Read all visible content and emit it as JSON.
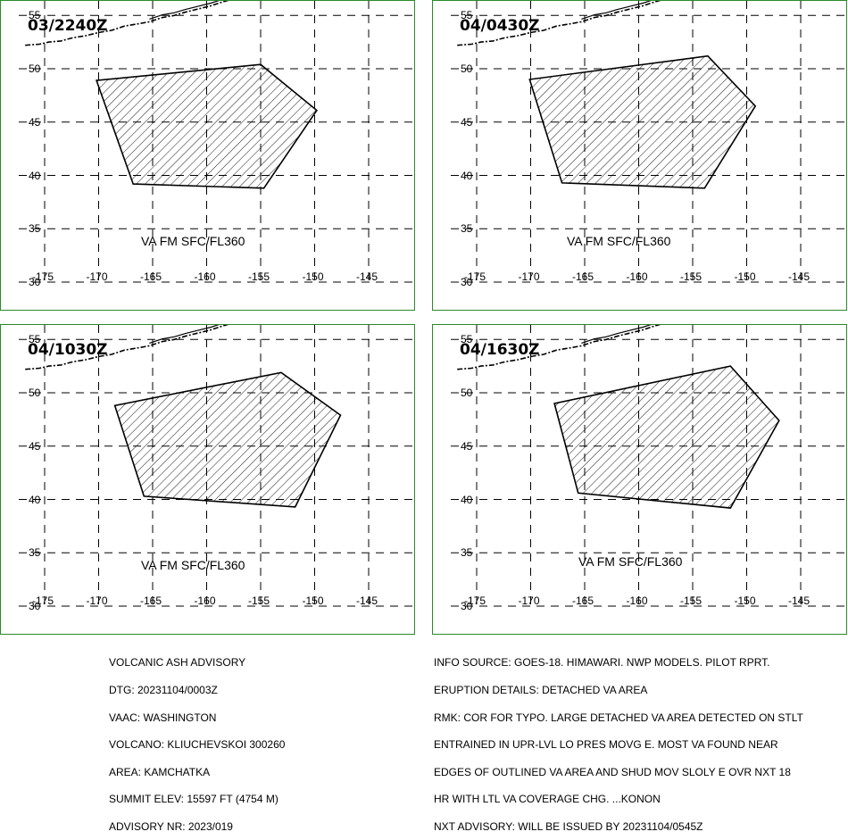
{
  "map": {
    "lon_ticks": [
      "-175",
      "-170",
      "-165",
      "-160",
      "-155",
      "-150",
      "-145"
    ],
    "lat_ticks": [
      "55",
      "50",
      "45",
      "40",
      "35",
      "30"
    ],
    "bounds": {
      "lon_min": -177,
      "lon_max": -140,
      "lat_min": 30,
      "lat_max": 56
    }
  },
  "panels": [
    {
      "time": "03/2240Z",
      "label": "VA FM SFC/FL360",
      "polygon": [
        [
          -170.2,
          48.9
        ],
        [
          -166.8,
          39.2
        ],
        [
          -154.7,
          38.8
        ],
        [
          -149.8,
          46.1
        ],
        [
          -155.0,
          50.4
        ]
      ]
    },
    {
      "time": "04/0430Z",
      "label": "VA FM SFC/FL360",
      "polygon": [
        [
          -170.1,
          49.0
        ],
        [
          -167.1,
          39.3
        ],
        [
          -153.9,
          38.8
        ],
        [
          -149.2,
          46.5
        ],
        [
          -153.6,
          51.2
        ]
      ]
    },
    {
      "time": "04/1030Z",
      "label": "VA FM SFC/FL360",
      "polygon": [
        [
          -168.5,
          48.8
        ],
        [
          -165.8,
          40.3
        ],
        [
          -151.8,
          39.3
        ],
        [
          -147.6,
          47.9
        ],
        [
          -153.1,
          51.9
        ]
      ]
    },
    {
      "time": "04/1630Z",
      "label": "VA FM SFC/FL360",
      "polygon": [
        [
          -167.8,
          49.0
        ],
        [
          -165.6,
          40.6
        ],
        [
          -151.5,
          39.2
        ],
        [
          -147.0,
          47.4
        ],
        [
          -151.5,
          52.5
        ]
      ]
    }
  ],
  "advisory": {
    "lines": [
      "VOLCANIC ASH ADVISORY",
      "DTG: 20231104/0003Z",
      "VAAC: WASHINGTON",
      "VOLCANO: KLIUCHEVSKOI 300260",
      "AREA: KAMCHATKA",
      "SUMMIT ELEV: 15597 FT (4754 M)",
      "ADVISORY NR: 2023/019"
    ]
  },
  "info": {
    "lines": [
      "INFO SOURCE: GOES-18. HIMAWARI. NWP MODELS. PILOT RPRT.",
      "ERUPTION DETAILS: DETACHED VA AREA",
      "RMK: COR FOR TYPO. LARGE DETACHED VA AREA DETECTED ON STLT",
      "ENTRAINED IN UPR-LVL LO PRES MOVG E. MOST VA FOUND NEAR",
      "EDGES OF OUTLINED VA AREA AND SHUD MOV SLOLY E OVR NXT 18",
      "HR WITH LTL VA COVERAGE CHG. ...KONON",
      "NXT ADVISORY: WILL BE ISSUED BY 20231104/0545Z"
    ]
  },
  "colors": {
    "border": "#2a8a2a",
    "grid": "#000000",
    "fill_hatch": "#000000"
  }
}
